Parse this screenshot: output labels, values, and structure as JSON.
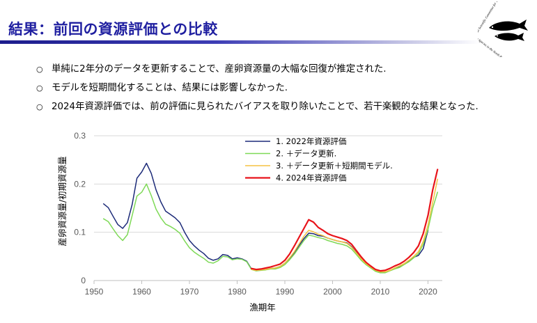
{
  "slide": {
    "title": "結果：前回の資源評価との比較",
    "logo_alt": "ISC logo",
    "logo_text_top": "International Scientific Committee for Tuna and",
    "logo_text_bottom": "Tuna-like Species in the North Pacific Ocean"
  },
  "bullets": [
    {
      "mark": "○",
      "text": "単純に2年分のデータを更新することで、産卵資源量の大幅な回復が推定された."
    },
    {
      "mark": "○",
      "text": "モデルを短期間化することは、結果には影響しなかった."
    },
    {
      "mark": "○",
      "text": "2024年資源評価では、前の評価に見られたバイアスを取り除いたことで、若干楽観的な結果となった."
    }
  ],
  "colors": {
    "title": "#1f1fa0",
    "series": [
      "#1c2a78",
      "#7ed957",
      "#f5c242",
      "#e8131a"
    ]
  },
  "chart_data": {
    "type": "line",
    "xlabel": "漁期年",
    "ylabel": "産卵資源量/初期資源量",
    "xlim": [
      1950,
      2023
    ],
    "ylim": [
      0,
      0.3
    ],
    "xticks": [
      1950,
      1960,
      1970,
      1980,
      1990,
      2000,
      2010,
      2020
    ],
    "yticks": [
      0,
      0.1,
      0.2,
      0.3
    ],
    "ytick_labels": [
      "0",
      "0.1",
      "0.2",
      "0.3"
    ],
    "grid": "horizontal",
    "legend": "top-center",
    "series": [
      {
        "name": "1.  2022年資源評価",
        "color": "#1c2a78",
        "width": 1.5,
        "x": [
          1952,
          1953,
          1954,
          1955,
          1956,
          1957,
          1958,
          1959,
          1960,
          1961,
          1962,
          1963,
          1964,
          1965,
          1966,
          1967,
          1968,
          1969,
          1970,
          1971,
          1972,
          1973,
          1974,
          1975,
          1976,
          1977,
          1978,
          1979,
          1980,
          1981,
          1982,
          1983,
          1984,
          1985,
          1986,
          1987,
          1988,
          1989,
          1990,
          1991,
          1992,
          1993,
          1994,
          1995,
          1996,
          1997,
          1998,
          1999,
          2000,
          2001,
          2002,
          2003,
          2004,
          2005,
          2006,
          2007,
          2008,
          2009,
          2010,
          2011,
          2012,
          2013,
          2014,
          2015,
          2016,
          2017,
          2018,
          2019,
          2020
        ],
        "y": [
          0.159,
          0.151,
          0.133,
          0.116,
          0.108,
          0.12,
          0.158,
          0.212,
          0.225,
          0.243,
          0.222,
          0.188,
          0.163,
          0.144,
          0.137,
          0.13,
          0.12,
          0.1,
          0.083,
          0.072,
          0.063,
          0.056,
          0.046,
          0.042,
          0.045,
          0.054,
          0.052,
          0.045,
          0.047,
          0.045,
          0.04,
          0.024,
          0.021,
          0.022,
          0.023,
          0.025,
          0.026,
          0.029,
          0.036,
          0.046,
          0.058,
          0.073,
          0.087,
          0.098,
          0.097,
          0.093,
          0.092,
          0.088,
          0.085,
          0.082,
          0.08,
          0.078,
          0.07,
          0.058,
          0.045,
          0.035,
          0.027,
          0.02,
          0.017,
          0.017,
          0.021,
          0.025,
          0.028,
          0.034,
          0.041,
          0.048,
          0.052,
          0.066,
          0.104
        ]
      },
      {
        "name": "2.      ＋データ更新.",
        "color": "#7ed957",
        "width": 1.5,
        "x": [
          1952,
          1953,
          1954,
          1955,
          1956,
          1957,
          1958,
          1959,
          1960,
          1961,
          1962,
          1963,
          1964,
          1965,
          1966,
          1967,
          1968,
          1969,
          1970,
          1971,
          1972,
          1973,
          1974,
          1975,
          1976,
          1977,
          1978,
          1979,
          1980,
          1981,
          1982,
          1983,
          1984,
          1985,
          1986,
          1987,
          1988,
          1989,
          1990,
          1991,
          1992,
          1993,
          1994,
          1995,
          1996,
          1997,
          1998,
          1999,
          2000,
          2001,
          2002,
          2003,
          2004,
          2005,
          2006,
          2007,
          2008,
          2009,
          2010,
          2011,
          2012,
          2013,
          2014,
          2015,
          2016,
          2017,
          2018,
          2019,
          2020,
          2021,
          2022
        ],
        "y": [
          0.128,
          0.122,
          0.107,
          0.093,
          0.083,
          0.095,
          0.135,
          0.175,
          0.183,
          0.2,
          0.176,
          0.148,
          0.13,
          0.117,
          0.112,
          0.106,
          0.098,
          0.082,
          0.068,
          0.059,
          0.052,
          0.046,
          0.038,
          0.036,
          0.041,
          0.05,
          0.049,
          0.043,
          0.045,
          0.044,
          0.039,
          0.023,
          0.02,
          0.021,
          0.022,
          0.024,
          0.024,
          0.027,
          0.033,
          0.043,
          0.055,
          0.069,
          0.083,
          0.094,
          0.092,
          0.089,
          0.087,
          0.083,
          0.08,
          0.077,
          0.075,
          0.072,
          0.065,
          0.054,
          0.042,
          0.033,
          0.026,
          0.019,
          0.016,
          0.016,
          0.02,
          0.024,
          0.027,
          0.033,
          0.039,
          0.047,
          0.056,
          0.075,
          0.106,
          0.15,
          0.183
        ]
      },
      {
        "name": "3.      ＋データ更新＋短期間モデル.",
        "color": "#f5c242",
        "width": 1.5,
        "x": [
          1983,
          1984,
          1985,
          1986,
          1987,
          1988,
          1989,
          1990,
          1991,
          1992,
          1993,
          1994,
          1995,
          1996,
          1997,
          1998,
          1999,
          2000,
          2001,
          2002,
          2003,
          2004,
          2005,
          2006,
          2007,
          2008,
          2009,
          2010,
          2011,
          2012,
          2013,
          2014,
          2015,
          2016,
          2017,
          2018,
          2019,
          2020,
          2021,
          2022
        ],
        "y": [
          0.023,
          0.021,
          0.022,
          0.023,
          0.025,
          0.026,
          0.029,
          0.036,
          0.047,
          0.06,
          0.076,
          0.092,
          0.104,
          0.101,
          0.096,
          0.093,
          0.088,
          0.085,
          0.082,
          0.08,
          0.077,
          0.069,
          0.057,
          0.045,
          0.035,
          0.028,
          0.021,
          0.018,
          0.018,
          0.021,
          0.026,
          0.03,
          0.035,
          0.042,
          0.05,
          0.06,
          0.081,
          0.115,
          0.162,
          0.21
        ]
      },
      {
        "name": "4.  2024年資源評価",
        "color": "#e8131a",
        "width": 2.2,
        "x": [
          1983,
          1984,
          1985,
          1986,
          1987,
          1988,
          1989,
          1990,
          1991,
          1992,
          1993,
          1994,
          1995,
          1996,
          1997,
          1998,
          1999,
          2000,
          2001,
          2002,
          2003,
          2004,
          2005,
          2006,
          2007,
          2008,
          2009,
          2010,
          2011,
          2012,
          2013,
          2014,
          2015,
          2016,
          2017,
          2018,
          2019,
          2020,
          2021,
          2022
        ],
        "y": [
          0.025,
          0.023,
          0.024,
          0.026,
          0.028,
          0.031,
          0.034,
          0.042,
          0.055,
          0.072,
          0.09,
          0.108,
          0.126,
          0.121,
          0.11,
          0.104,
          0.097,
          0.093,
          0.09,
          0.087,
          0.083,
          0.075,
          0.062,
          0.049,
          0.038,
          0.03,
          0.023,
          0.02,
          0.021,
          0.025,
          0.03,
          0.034,
          0.04,
          0.048,
          0.058,
          0.072,
          0.097,
          0.135,
          0.188,
          0.23
        ]
      }
    ]
  }
}
